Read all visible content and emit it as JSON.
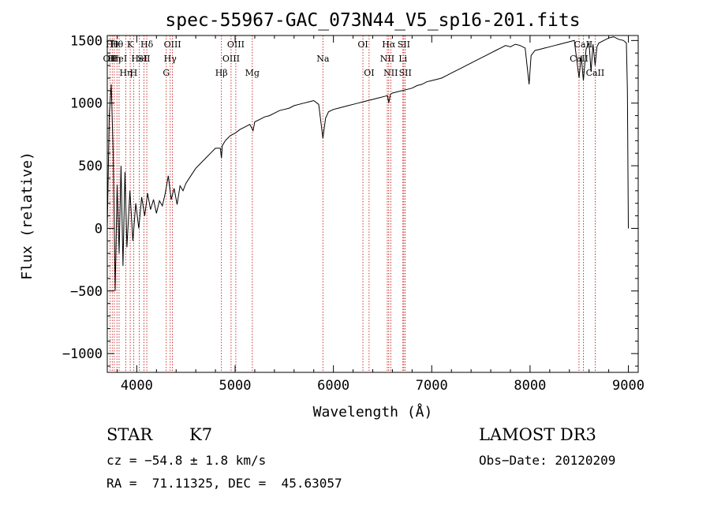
{
  "chart_data": {
    "type": "line",
    "title": "spec-55967-GAC_073N44_V5_sp16-201.fits",
    "xlabel": "Wavelength (Å)",
    "ylabel": "Flux (relative)",
    "xlim": [
      3700,
      9100
    ],
    "ylim": [
      -1150,
      1540
    ],
    "xticks": [
      4000,
      5000,
      6000,
      7000,
      8000,
      9000
    ],
    "yticks": [
      -1000,
      -500,
      0,
      500,
      1000,
      1500
    ],
    "ytick_labels": [
      "−1000",
      "−500",
      "0",
      "500",
      "1000",
      "1500"
    ],
    "series": [
      {
        "name": "flux",
        "x": [
          3700,
          3720,
          3740,
          3760,
          3780,
          3800,
          3820,
          3840,
          3860,
          3880,
          3900,
          3930,
          3960,
          3990,
          4020,
          4050,
          4080,
          4110,
          4140,
          4170,
          4200,
          4230,
          4260,
          4290,
          4320,
          4350,
          4380,
          4410,
          4440,
          4470,
          4500,
          4550,
          4600,
          4650,
          4700,
          4750,
          4800,
          4850,
          4861,
          4870,
          4900,
          4950,
          5000,
          5050,
          5100,
          5150,
          5183,
          5200,
          5250,
          5300,
          5350,
          5400,
          5450,
          5500,
          5550,
          5600,
          5650,
          5700,
          5750,
          5800,
          5850,
          5893,
          5920,
          5950,
          6000,
          6050,
          6100,
          6150,
          6200,
          6250,
          6300,
          6350,
          6400,
          6450,
          6500,
          6550,
          6563,
          6580,
          6600,
          6650,
          6700,
          6750,
          6800,
          6850,
          6900,
          6950,
          7000,
          7050,
          7100,
          7150,
          7200,
          7250,
          7300,
          7350,
          7400,
          7450,
          7500,
          7550,
          7600,
          7650,
          7700,
          7750,
          7800,
          7850,
          7900,
          7950,
          7990,
          8010,
          8050,
          8100,
          8150,
          8200,
          8250,
          8300,
          8350,
          8400,
          8450,
          8498,
          8520,
          8542,
          8570,
          8600,
          8620,
          8640,
          8662,
          8680,
          8700,
          8750,
          8800,
          8850,
          8900,
          8950,
          8980,
          8990,
          9000
        ],
        "y": [
          0,
          900,
          1150,
          600,
          -500,
          350,
          -200,
          500,
          -300,
          450,
          -150,
          300,
          -100,
          200,
          0,
          250,
          100,
          280,
          150,
          230,
          120,
          220,
          180,
          280,
          420,
          230,
          320,
          190,
          340,
          300,
          360,
          420,
          480,
          520,
          560,
          600,
          640,
          640,
          560,
          660,
          700,
          740,
          760,
          790,
          810,
          830,
          780,
          850,
          870,
          890,
          900,
          920,
          940,
          950,
          960,
          980,
          990,
          1000,
          1010,
          1020,
          990,
          720,
          880,
          930,
          950,
          960,
          970,
          980,
          990,
          1000,
          1010,
          1020,
          1030,
          1040,
          1050,
          1060,
          1000,
          1070,
          1080,
          1090,
          1100,
          1110,
          1120,
          1140,
          1150,
          1170,
          1180,
          1190,
          1200,
          1220,
          1240,
          1260,
          1280,
          1300,
          1320,
          1340,
          1360,
          1380,
          1400,
          1420,
          1440,
          1460,
          1450,
          1470,
          1460,
          1440,
          1150,
          1380,
          1420,
          1430,
          1440,
          1450,
          1460,
          1470,
          1480,
          1490,
          1500,
          1200,
          1380,
          1180,
          1430,
          1480,
          1250,
          1470,
          1300,
          1450,
          1480,
          1500,
          1520,
          1530,
          1510,
          1500,
          1480,
          1100,
          0
        ]
      }
    ],
    "lines": [
      {
        "wave": 3727,
        "label": "OII",
        "row": 1
      },
      {
        "wave": 3750,
        "label": "Hθ",
        "row": 0
      },
      {
        "wave": 3771,
        "label": "Hη",
        "row": 1
      },
      {
        "wave": 3798,
        "label": "Hθ",
        "row": 0
      },
      {
        "wave": 3820,
        "label": "HeI",
        "row": 1
      },
      {
        "wave": 3889,
        "label": "Hη",
        "row": 2
      },
      {
        "wave": 3933,
        "label": "K",
        "row": 0
      },
      {
        "wave": 3968,
        "label": "H",
        "row": 2
      },
      {
        "wave": 4026,
        "label": "HeI",
        "row": 1
      },
      {
        "wave": 4072,
        "label": "SII",
        "row": 1
      },
      {
        "wave": 4102,
        "label": "Hδ",
        "row": 0
      },
      {
        "wave": 4300,
        "label": "G",
        "row": 2
      },
      {
        "wave": 4340,
        "label": "Hγ",
        "row": 1
      },
      {
        "wave": 4363,
        "label": "OIII",
        "row": 0
      },
      {
        "wave": 4861,
        "label": "Hβ",
        "row": 2
      },
      {
        "wave": 4959,
        "label": "OIII",
        "row": 1
      },
      {
        "wave": 5007,
        "label": "OIII",
        "row": 0
      },
      {
        "wave": 5175,
        "label": "Mg",
        "row": 2
      },
      {
        "wave": 5893,
        "label": "Na",
        "row": 1
      },
      {
        "wave": 6300,
        "label": "OI",
        "row": 0
      },
      {
        "wave": 6363,
        "label": "OI",
        "row": 2
      },
      {
        "wave": 6548,
        "label": "NII",
        "row": 1
      },
      {
        "wave": 6563,
        "label": "Hα",
        "row": 0
      },
      {
        "wave": 6583,
        "label": "NII",
        "row": 2
      },
      {
        "wave": 6707,
        "label": "Li",
        "row": 1
      },
      {
        "wave": 6716,
        "label": "SII",
        "row": 0
      },
      {
        "wave": 6731,
        "label": "SII",
        "row": 2
      },
      {
        "wave": 8498,
        "label": "CaII",
        "row": 1
      },
      {
        "wave": 8542,
        "label": "CaII",
        "row": 0
      },
      {
        "wave": 8662,
        "label": "CaII",
        "row": 2
      }
    ],
    "line_color": "#c00000",
    "data_color": "#000000"
  },
  "info": {
    "class": "STAR",
    "subclass": "K7",
    "survey": "LAMOST DR3",
    "cz": "cz = −54.8 ± 1.8 km/s",
    "obs_date": "Obs−Date: 20120209",
    "coords": "RA =  71.11325, DEC =  45.63057"
  }
}
